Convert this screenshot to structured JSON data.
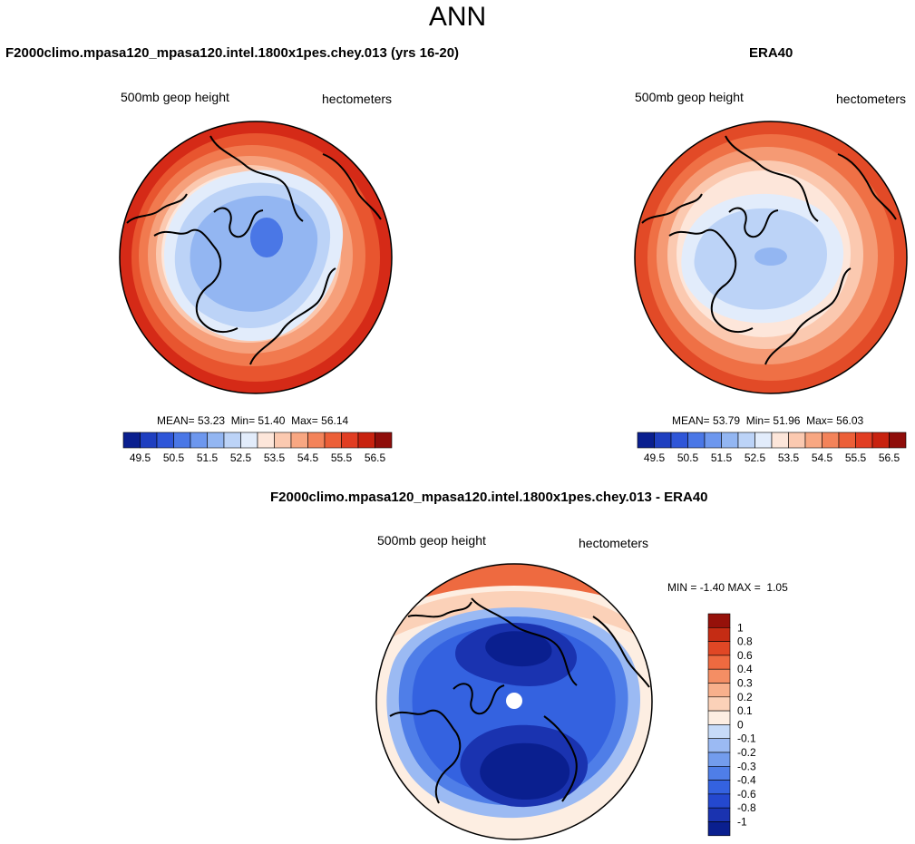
{
  "main_title": "ANN",
  "colors": {
    "levels_abs": [
      "#0a1f8f",
      "#1f3fc0",
      "#2f56d8",
      "#4a77e6",
      "#6d97ee",
      "#93b6f2",
      "#bcd3f7",
      "#e2ecfb",
      "#fde6da",
      "#fbc9b0",
      "#f8a782",
      "#f3835a",
      "#ec5f38",
      "#e13d22",
      "#c8220f",
      "#8f0d0a"
    ],
    "levels_diff": [
      "#0a1f8f",
      "#1a33b0",
      "#2448cf",
      "#3462e0",
      "#4f7ee8",
      "#739ced",
      "#9bbaf3",
      "#c7dbf8",
      "#fdeee2",
      "#fbd1b8",
      "#f8b08c",
      "#f48e64",
      "#ee6a40",
      "#e04725",
      "#c52c14",
      "#96110a"
    ]
  },
  "chart_data": [
    {
      "type": "heatmap",
      "projection": "north-polar-stereographic",
      "title": "F2000climo.mpasa120_mpasa120.intel.1800x1pes.chey.013 (yrs 16-20)",
      "variable": "500mb geop height",
      "units": "hectometers",
      "stats": {
        "mean_label": "MEAN=",
        "mean": "53.23",
        "min_label": "Min=",
        "min": "51.40",
        "max_label": "Max=",
        "max": "56.14"
      },
      "colorbar_ticks": [
        "49.5",
        "50.5",
        "51.5",
        "52.5",
        "53.5",
        "54.5",
        "55.5",
        "56.5"
      ]
    },
    {
      "type": "heatmap",
      "projection": "north-polar-stereographic",
      "title": "ERA40",
      "variable": "500mb geop height",
      "units": "hectometers",
      "stats": {
        "mean_label": "MEAN=",
        "mean": "53.79",
        "min_label": "Min=",
        "min": "51.96",
        "max_label": "Max=",
        "max": "56.03"
      },
      "colorbar_ticks": [
        "49.5",
        "50.5",
        "51.5",
        "52.5",
        "53.5",
        "54.5",
        "55.5",
        "56.5"
      ]
    },
    {
      "type": "heatmap",
      "projection": "north-polar-stereographic",
      "title": "F2000climo.mpasa120_mpasa120.intel.1800x1pes.chey.013 - ERA40",
      "variable": "500mb geop height",
      "units": "hectometers",
      "stats": {
        "min_label": "MIN =",
        "min": "-1.40",
        "max_label": "MAX =",
        "max": "1.05"
      },
      "colorbar_ticks": [
        "1",
        "0.8",
        "0.6",
        "0.4",
        "0.3",
        "0.2",
        "0.1",
        "0",
        "-0.1",
        "-0.2",
        "-0.3",
        "-0.4",
        "-0.6",
        "-0.8",
        "-1"
      ]
    }
  ]
}
